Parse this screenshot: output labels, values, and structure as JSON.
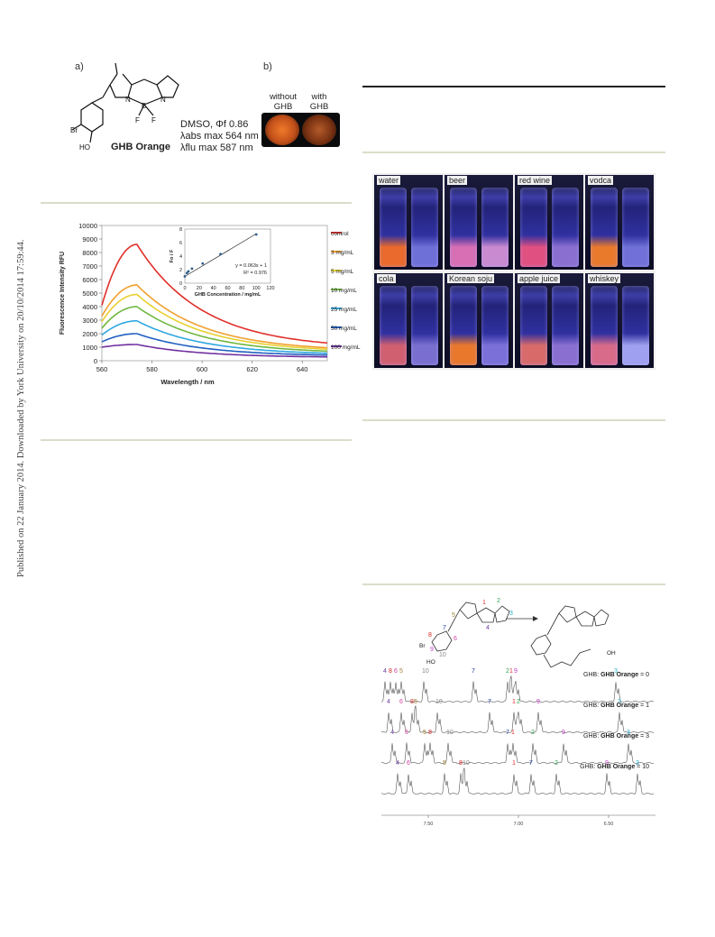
{
  "sidebar_text": "Published on 22 January 2014. Downloaded by York University on 20/10/2014 17:59:44.",
  "fig_top": {
    "label_a": "a)",
    "label_b": "b)",
    "compound_name": "GHB Orange",
    "solvent_line": "DMSO, Φf 0.86",
    "abs_line": "λabs max 564 nm",
    "flu_line": "λflu max 587 nm",
    "atom_labels": {
      "br": "Br",
      "ho": "HO",
      "n1": "N",
      "n2": "N",
      "b": "B",
      "f1": "F",
      "f2": "F"
    },
    "photo_left": "without",
    "photo_left2": "GHB",
    "photo_right": "with",
    "photo_right2": "GHB"
  },
  "vials": {
    "top_row": [
      "water",
      "beer",
      "red wine",
      "vodca"
    ],
    "bottom_row": [
      "cola",
      "Korean soju",
      "apple juice",
      "whiskey"
    ],
    "colors": {
      "water": [
        "#e96a2c",
        "#6f6fd8"
      ],
      "beer": [
        "#d86fb4",
        "#c98ad0"
      ],
      "red wine": [
        "#e05080",
        "#8a6fd0"
      ],
      "vodca": [
        "#e97a2c",
        "#7070d8"
      ],
      "cola": [
        "#d06070",
        "#7a6fd0"
      ],
      "Korean soju": [
        "#e9782c",
        "#7a70d8"
      ],
      "apple juice": [
        "#d86a6a",
        "#8a6fd0"
      ],
      "whiskey": [
        "#d86a8a",
        "#a0a0f0"
      ]
    }
  },
  "chart_data": {
    "type": "line",
    "xlabel": "Wavelength / nm",
    "ylabel": "Fluorescence Intensity RFU",
    "xlim": [
      560,
      650
    ],
    "ylim": [
      0,
      10000
    ],
    "x_ticks": [
      "560",
      "580",
      "600",
      "620",
      "640"
    ],
    "y_ticks": [
      "0",
      "1000",
      "2000",
      "3000",
      "4000",
      "5000",
      "6000",
      "7000",
      "8000",
      "9000",
      "10000"
    ],
    "legend_position": "right",
    "series": [
      {
        "name": "control",
        "color": "#e0302a",
        "peak": 8600,
        "start": 4100,
        "end": 900
      },
      {
        "name": "3 mg/mL",
        "color": "#f0a030",
        "peak": 5600,
        "start": 3300,
        "end": 700
      },
      {
        "name": "5 mg/mL",
        "color": "#e8d030",
        "peak": 4900,
        "start": 2900,
        "end": 620
      },
      {
        "name": "10 mg/mL",
        "color": "#70b840",
        "peak": 4000,
        "start": 2400,
        "end": 520
      },
      {
        "name": "25 mg/mL",
        "color": "#30a8e0",
        "peak": 2950,
        "start": 1900,
        "end": 420
      },
      {
        "name": "50 mg/mL",
        "color": "#2060c0",
        "peak": 2000,
        "start": 1400,
        "end": 330
      },
      {
        "name": "100 mg/mL",
        "color": "#7030a0",
        "peak": 1200,
        "start": 1000,
        "end": 230
      }
    ],
    "inset": {
      "type": "scatter",
      "xlabel": "GHB Concentration / mg/mL",
      "ylabel": "Fo / F",
      "xlim": [
        0,
        120
      ],
      "ylim": [
        0,
        8
      ],
      "x_ticks": [
        "0",
        "20",
        "40",
        "60",
        "80",
        "100",
        "120"
      ],
      "y_ticks": [
        "0",
        "2",
        "4",
        "6",
        "8"
      ],
      "points": [
        [
          0,
          1.0
        ],
        [
          3,
          1.5
        ],
        [
          5,
          1.75
        ],
        [
          10,
          2.15
        ],
        [
          25,
          2.9
        ],
        [
          50,
          4.3
        ],
        [
          100,
          7.2
        ]
      ],
      "fit_equation": "y = 0.063x + 1",
      "r_squared": "R² = 0.976"
    }
  },
  "nmr": {
    "labels_structure": [
      "1",
      "2",
      "3",
      "4",
      "5",
      "6",
      "7",
      "8",
      "9",
      "10"
    ],
    "oh_label": "OH",
    "ho_label": "HO",
    "br_label": "Br",
    "ratio_prefix": "GHB: ",
    "ratio_bold": "GHB Orange",
    "ratios": [
      " = 0",
      " = 1",
      " = 3",
      " = 10"
    ],
    "x_ticks": [
      "7.50",
      "7.00",
      "6.50"
    ]
  }
}
